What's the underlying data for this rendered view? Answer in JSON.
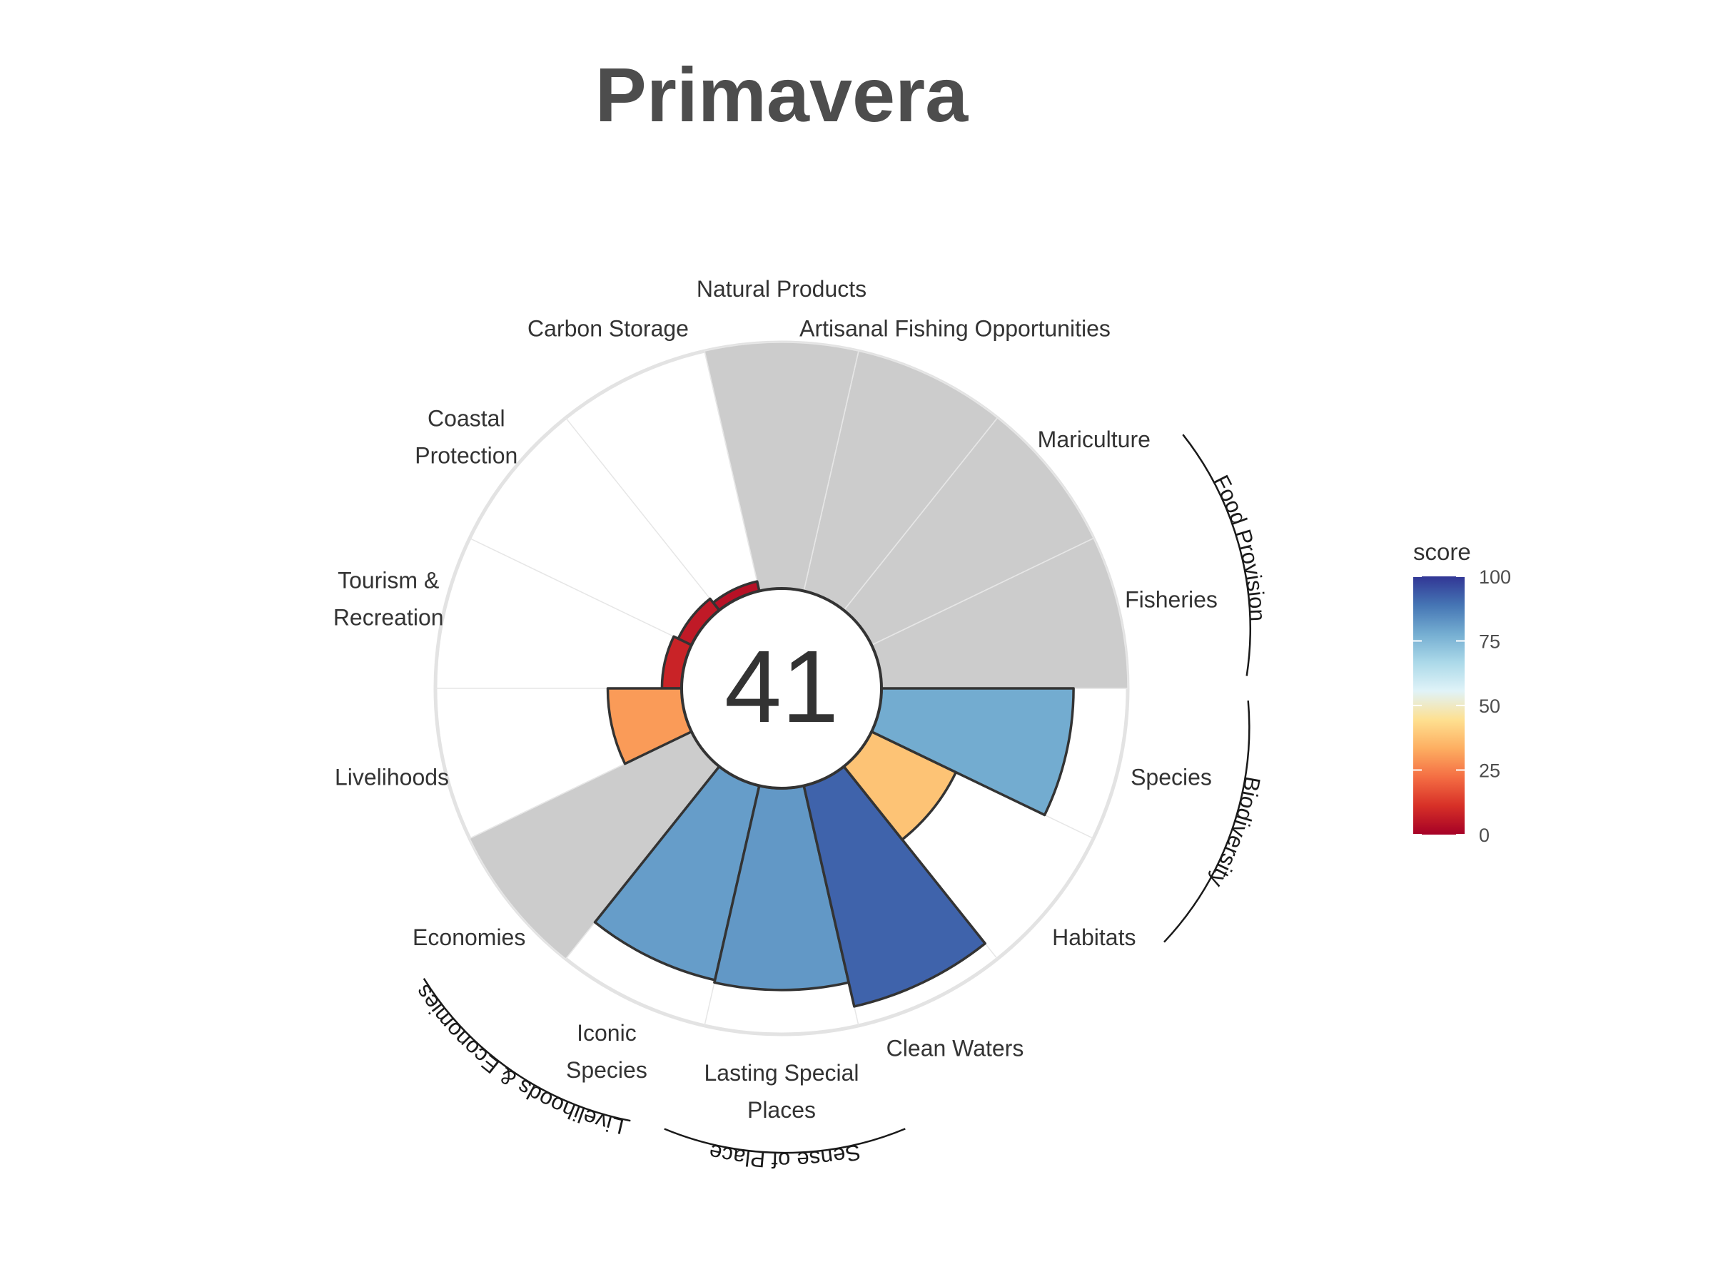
{
  "chart_data": {
    "type": "polar-bar",
    "title": "Primavera",
    "overall_score": "41",
    "ylim": [
      0,
      100
    ],
    "categories": [
      {
        "label": [
          "Fisheries"
        ],
        "value": null,
        "group": "Food Provision"
      },
      {
        "label": [
          "Mariculture"
        ],
        "value": null,
        "group": "Food Provision"
      },
      {
        "label": [
          "Artisanal Fishing Opportunities"
        ],
        "value": null,
        "group": ""
      },
      {
        "label": [
          "Natural Products"
        ],
        "value": null,
        "group": ""
      },
      {
        "label": [
          "Carbon Storage"
        ],
        "value": 4,
        "group": ""
      },
      {
        "label": [
          "Coastal",
          "Protection"
        ],
        "value": 6,
        "group": ""
      },
      {
        "label": [
          "Tourism &",
          "Recreation"
        ],
        "value": 8,
        "group": ""
      },
      {
        "label": [
          "Livelihoods"
        ],
        "value": 30,
        "group": "Livelihoods & Economies"
      },
      {
        "label": [
          "Economies"
        ],
        "value": null,
        "group": "Livelihoods & Economies"
      },
      {
        "label": [
          "Iconic",
          "Species"
        ],
        "value": 81,
        "group": "Sense of Place"
      },
      {
        "label": [
          "Lasting Special",
          "Places"
        ],
        "value": 82,
        "group": "Sense of Place"
      },
      {
        "label": [
          "Clean Waters"
        ],
        "value": 92,
        "group": ""
      },
      {
        "label": [
          "Habitats"
        ],
        "value": 38,
        "group": "Biodiversity"
      },
      {
        "label": [
          "Species"
        ],
        "value": 78,
        "group": "Biodiversity"
      }
    ],
    "groups": [
      "Food Provision",
      "Biodiversity",
      "Sense of Place",
      "Livelihoods & Economies"
    ],
    "missing_color": "#cccccc",
    "legend": {
      "title": "score",
      "ticks": [
        "100",
        "75",
        "50",
        "25",
        "0"
      ],
      "colors": [
        "#a50026",
        "#d73027",
        "#f46d43",
        "#fdae61",
        "#fee090",
        "#e0f3f8",
        "#abd9e9",
        "#74add1",
        "#4575b4",
        "#313695"
      ]
    }
  }
}
